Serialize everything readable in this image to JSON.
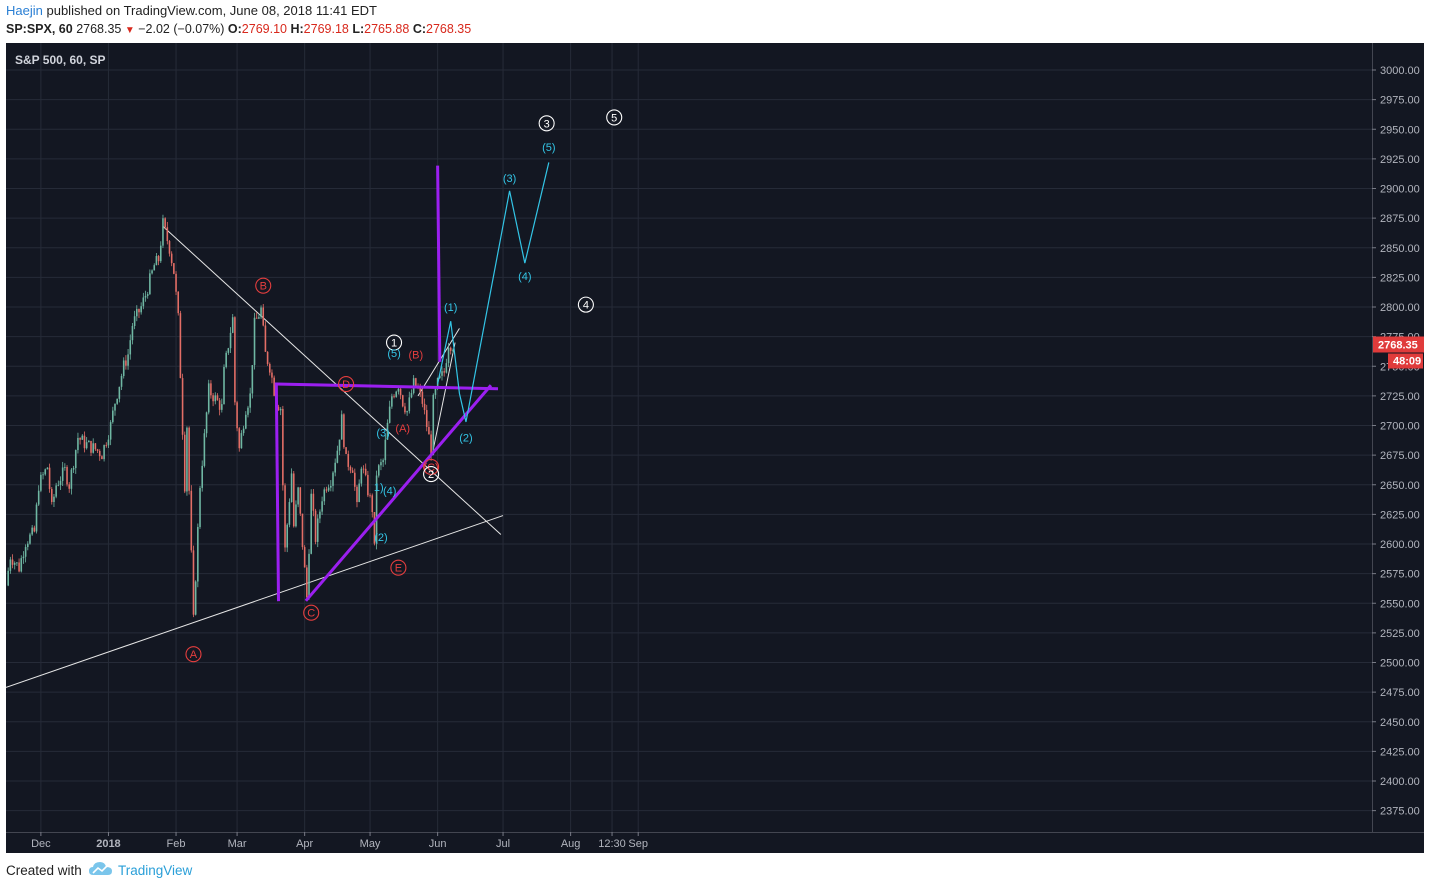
{
  "header": {
    "author": "Haejin",
    "published": "published on TradingView.com, June 08, 2018 11:41 EDT",
    "symbol": "SP:SPX, 60",
    "last": "2768.35",
    "change": "−2.02 (−0.07%)",
    "o_label": "O:",
    "o_value": "2769.10",
    "h_label": "H:",
    "h_value": "2769.18",
    "l_label": "L:",
    "l_value": "2765.88",
    "c_label": "C:",
    "c_value": "2768.35"
  },
  "footer": {
    "created_with": "Created with",
    "brand": "TradingView"
  },
  "colors": {
    "background": "#131722",
    "grid": "#262b38",
    "axis_text": "#b2b5be",
    "up": "#6fb7a3",
    "down": "#e36e66",
    "trendline": "#e6e6e6",
    "triangle": "#9b1ff0",
    "projection": "#33c5e6",
    "red_label": "#e53e3e",
    "white_label": "#ffffff",
    "price_tag": "#e03b3b"
  },
  "chart_data": {
    "type": "candlestick",
    "title": "S&P 500, 60, SP",
    "xlabel": "",
    "ylabel": "",
    "ylim": [
      2355,
      3015
    ],
    "y_ticks": [
      2375,
      2400,
      2425,
      2450,
      2475,
      2500,
      2525,
      2550,
      2575,
      2600,
      2625,
      2650,
      2675,
      2700,
      2725,
      2750,
      2775,
      2800,
      2825,
      2850,
      2875,
      2900,
      2925,
      2950,
      2975,
      3000
    ],
    "x_ticks": [
      {
        "label": "Dec",
        "date": "2017-12-01"
      },
      {
        "label": "2018",
        "date": "2018-01-01"
      },
      {
        "label": "Feb",
        "date": "2018-02-01"
      },
      {
        "label": "Mar",
        "date": "2018-03-01"
      },
      {
        "label": "Apr",
        "date": "2018-04-01"
      },
      {
        "label": "May",
        "date": "2018-05-01"
      },
      {
        "label": "Jun",
        "date": "2018-06-01"
      },
      {
        "label": "Jul",
        "date": "2018-07-01"
      },
      {
        "label": "Aug",
        "date": "2018-08-01"
      },
      {
        "label": "12:30",
        "date": "2018-08-20"
      },
      {
        "label": "Sep",
        "date": "2018-09-01"
      }
    ],
    "grid": true,
    "last_price": "2768.35",
    "countdown": "48:09",
    "price_path": [
      [
        "2017-11-15",
        2565
      ],
      [
        "2017-11-17",
        2590
      ],
      [
        "2017-11-21",
        2580
      ],
      [
        "2017-11-24",
        2602
      ],
      [
        "2017-11-28",
        2610
      ],
      [
        "2017-11-30",
        2650
      ],
      [
        "2017-12-04",
        2665
      ],
      [
        "2017-12-06",
        2630
      ],
      [
        "2017-12-08",
        2650
      ],
      [
        "2017-12-12",
        2662
      ],
      [
        "2017-12-14",
        2650
      ],
      [
        "2017-12-18",
        2690
      ],
      [
        "2017-12-21",
        2685
      ],
      [
        "2017-12-26",
        2680
      ],
      [
        "2017-12-29",
        2676
      ],
      [
        "2018-01-02",
        2700
      ],
      [
        "2018-01-04",
        2720
      ],
      [
        "2018-01-08",
        2750
      ],
      [
        "2018-01-10",
        2760
      ],
      [
        "2018-01-12",
        2785
      ],
      [
        "2018-01-16",
        2800
      ],
      [
        "2018-01-18",
        2810
      ],
      [
        "2018-01-22",
        2835
      ],
      [
        "2018-01-24",
        2840
      ],
      [
        "2018-01-26",
        2870
      ],
      [
        "2018-01-29",
        2850
      ],
      [
        "2018-01-31",
        2830
      ],
      [
        "2018-02-02",
        2790
      ],
      [
        "2018-02-05",
        2650
      ],
      [
        "2018-02-06",
        2700
      ],
      [
        "2018-02-08",
        2590
      ],
      [
        "2018-02-09",
        2535
      ],
      [
        "2018-02-12",
        2650
      ],
      [
        "2018-02-14",
        2690
      ],
      [
        "2018-02-16",
        2730
      ],
      [
        "2018-02-20",
        2720
      ],
      [
        "2018-02-22",
        2715
      ],
      [
        "2018-02-23",
        2745
      ],
      [
        "2018-02-26",
        2780
      ],
      [
        "2018-02-27",
        2790
      ],
      [
        "2018-02-28",
        2720
      ],
      [
        "2018-03-02",
        2680
      ],
      [
        "2018-03-05",
        2715
      ],
      [
        "2018-03-07",
        2725
      ],
      [
        "2018-03-09",
        2785
      ],
      [
        "2018-03-12",
        2798
      ],
      [
        "2018-03-14",
        2760
      ],
      [
        "2018-03-16",
        2750
      ],
      [
        "2018-03-19",
        2720
      ],
      [
        "2018-03-21",
        2715
      ],
      [
        "2018-03-22",
        2650
      ],
      [
        "2018-03-23",
        2595
      ],
      [
        "2018-03-26",
        2660
      ],
      [
        "2018-03-27",
        2615
      ],
      [
        "2018-03-29",
        2645
      ],
      [
        "2018-04-02",
        2555
      ],
      [
        "2018-04-04",
        2640
      ],
      [
        "2018-04-06",
        2605
      ],
      [
        "2018-04-09",
        2640
      ],
      [
        "2018-04-11",
        2650
      ],
      [
        "2018-04-13",
        2655
      ],
      [
        "2018-04-16",
        2680
      ],
      [
        "2018-04-18",
        2705
      ],
      [
        "2018-04-20",
        2670
      ],
      [
        "2018-04-23",
        2665
      ],
      [
        "2018-04-25",
        2630
      ],
      [
        "2018-04-27",
        2668
      ],
      [
        "2018-04-30",
        2645
      ],
      [
        "2018-05-02",
        2630
      ],
      [
        "2018-05-03",
        2595
      ],
      [
        "2018-05-04",
        2660
      ],
      [
        "2018-05-07",
        2670
      ],
      [
        "2018-05-09",
        2700
      ],
      [
        "2018-05-11",
        2725
      ],
      [
        "2018-05-14",
        2735
      ],
      [
        "2018-05-16",
        2720
      ],
      [
        "2018-05-18",
        2712
      ],
      [
        "2018-05-21",
        2735
      ],
      [
        "2018-05-23",
        2730
      ],
      [
        "2018-05-25",
        2720
      ],
      [
        "2018-05-29",
        2680
      ],
      [
        "2018-05-30",
        2720
      ],
      [
        "2018-06-01",
        2735
      ],
      [
        "2018-06-04",
        2745
      ],
      [
        "2018-06-06",
        2770
      ],
      [
        "2018-06-08",
        2768
      ]
    ],
    "trendlines": [
      {
        "name": "upper-falling-line",
        "from": [
          "2018-01-26",
          2868
        ],
        "to": [
          "2018-06-30",
          2608
        ]
      },
      {
        "name": "lower-rising-line",
        "from": [
          "2017-11-15",
          2479
        ],
        "to": [
          "2018-07-01",
          2624
        ]
      },
      {
        "name": "june-wedge-upper",
        "from": [
          "2018-05-23",
          2725
        ],
        "to": [
          "2018-06-11",
          2782
        ]
      },
      {
        "name": "june-wedge-lower",
        "from": [
          "2018-05-30",
          2680
        ],
        "to": [
          "2018-06-09",
          2770
        ]
      }
    ],
    "triangle_lines": [
      {
        "from": [
          "2018-03-19",
          2735
        ],
        "to": [
          "2018-06-28",
          2731
        ]
      },
      {
        "from": [
          "2018-03-19",
          2735
        ],
        "to": [
          "2018-03-20",
          2553
        ]
      },
      {
        "from": [
          "2018-04-02",
          2553
        ],
        "to": [
          "2018-06-25",
          2733
        ]
      },
      {
        "from": [
          "2018-06-01",
          2918
        ],
        "to": [
          "2018-06-02",
          2755
        ]
      }
    ],
    "projection": [
      [
        "2018-06-01",
        2735
      ],
      [
        "2018-06-07",
        2788
      ],
      [
        "2018-06-11",
        2727
      ],
      [
        "2018-06-14",
        2703
      ],
      [
        "2018-07-04",
        2898
      ],
      [
        "2018-07-11",
        2837
      ],
      [
        "2018-07-22",
        2922
      ]
    ],
    "wave_labels": [
      {
        "text": "A",
        "style": "red-circle",
        "at": [
          "2018-02-09",
          2507
        ]
      },
      {
        "text": "B",
        "style": "red-circle",
        "at": [
          "2018-03-13",
          2818
        ]
      },
      {
        "text": "C",
        "style": "red-circle",
        "at": [
          "2018-04-04",
          2542
        ]
      },
      {
        "text": "D",
        "style": "red-circle",
        "at": [
          "2018-04-20",
          2735
        ]
      },
      {
        "text": "E",
        "style": "red-circle",
        "at": [
          "2018-05-14",
          2580
        ]
      },
      {
        "text": "(C)",
        "style": "red-circle",
        "at": [
          "2018-05-29",
          2665
        ]
      },
      {
        "text": "(A)",
        "style": "red",
        "at": [
          "2018-05-16",
          2698
        ]
      },
      {
        "text": "(B)",
        "style": "red",
        "at": [
          "2018-05-22",
          2760
        ]
      },
      {
        "text": "1",
        "style": "white-circle",
        "at": [
          "2018-05-12",
          2770
        ]
      },
      {
        "text": "2",
        "style": "white-circle",
        "at": [
          "2018-05-29",
          2659
        ]
      },
      {
        "text": "3",
        "style": "white-circle",
        "at": [
          "2018-07-21",
          2955
        ]
      },
      {
        "text": "4",
        "style": "white-circle",
        "at": [
          "2018-08-08",
          2802
        ]
      },
      {
        "text": "5",
        "style": "white-circle",
        "at": [
          "2018-08-21",
          2960
        ]
      },
      {
        "text": "(5)",
        "style": "cyan",
        "at": [
          "2018-05-12",
          2761
        ]
      },
      {
        "text": "(3)",
        "style": "cyan",
        "at": [
          "2018-05-07",
          2694
        ]
      },
      {
        "text": "(4)",
        "style": "cyan",
        "at": [
          "2018-05-10",
          2645
        ]
      },
      {
        "text": "1)",
        "style": "cyan",
        "at": [
          "2018-05-05",
          2648
        ]
      },
      {
        "text": "(2)",
        "style": "cyan",
        "at": [
          "2018-05-06",
          2606
        ]
      },
      {
        "text": "(1)",
        "style": "cyan",
        "at": [
          "2018-06-07",
          2800
        ]
      },
      {
        "text": "(2)",
        "style": "cyan",
        "at": [
          "2018-06-14",
          2690
        ]
      },
      {
        "text": "(3)",
        "style": "cyan",
        "at": [
          "2018-07-04",
          2909
        ]
      },
      {
        "text": "(4)",
        "style": "cyan",
        "at": [
          "2018-07-11",
          2826
        ]
      },
      {
        "text": "(5)",
        "style": "cyan",
        "at": [
          "2018-07-22",
          2935
        ]
      }
    ]
  }
}
